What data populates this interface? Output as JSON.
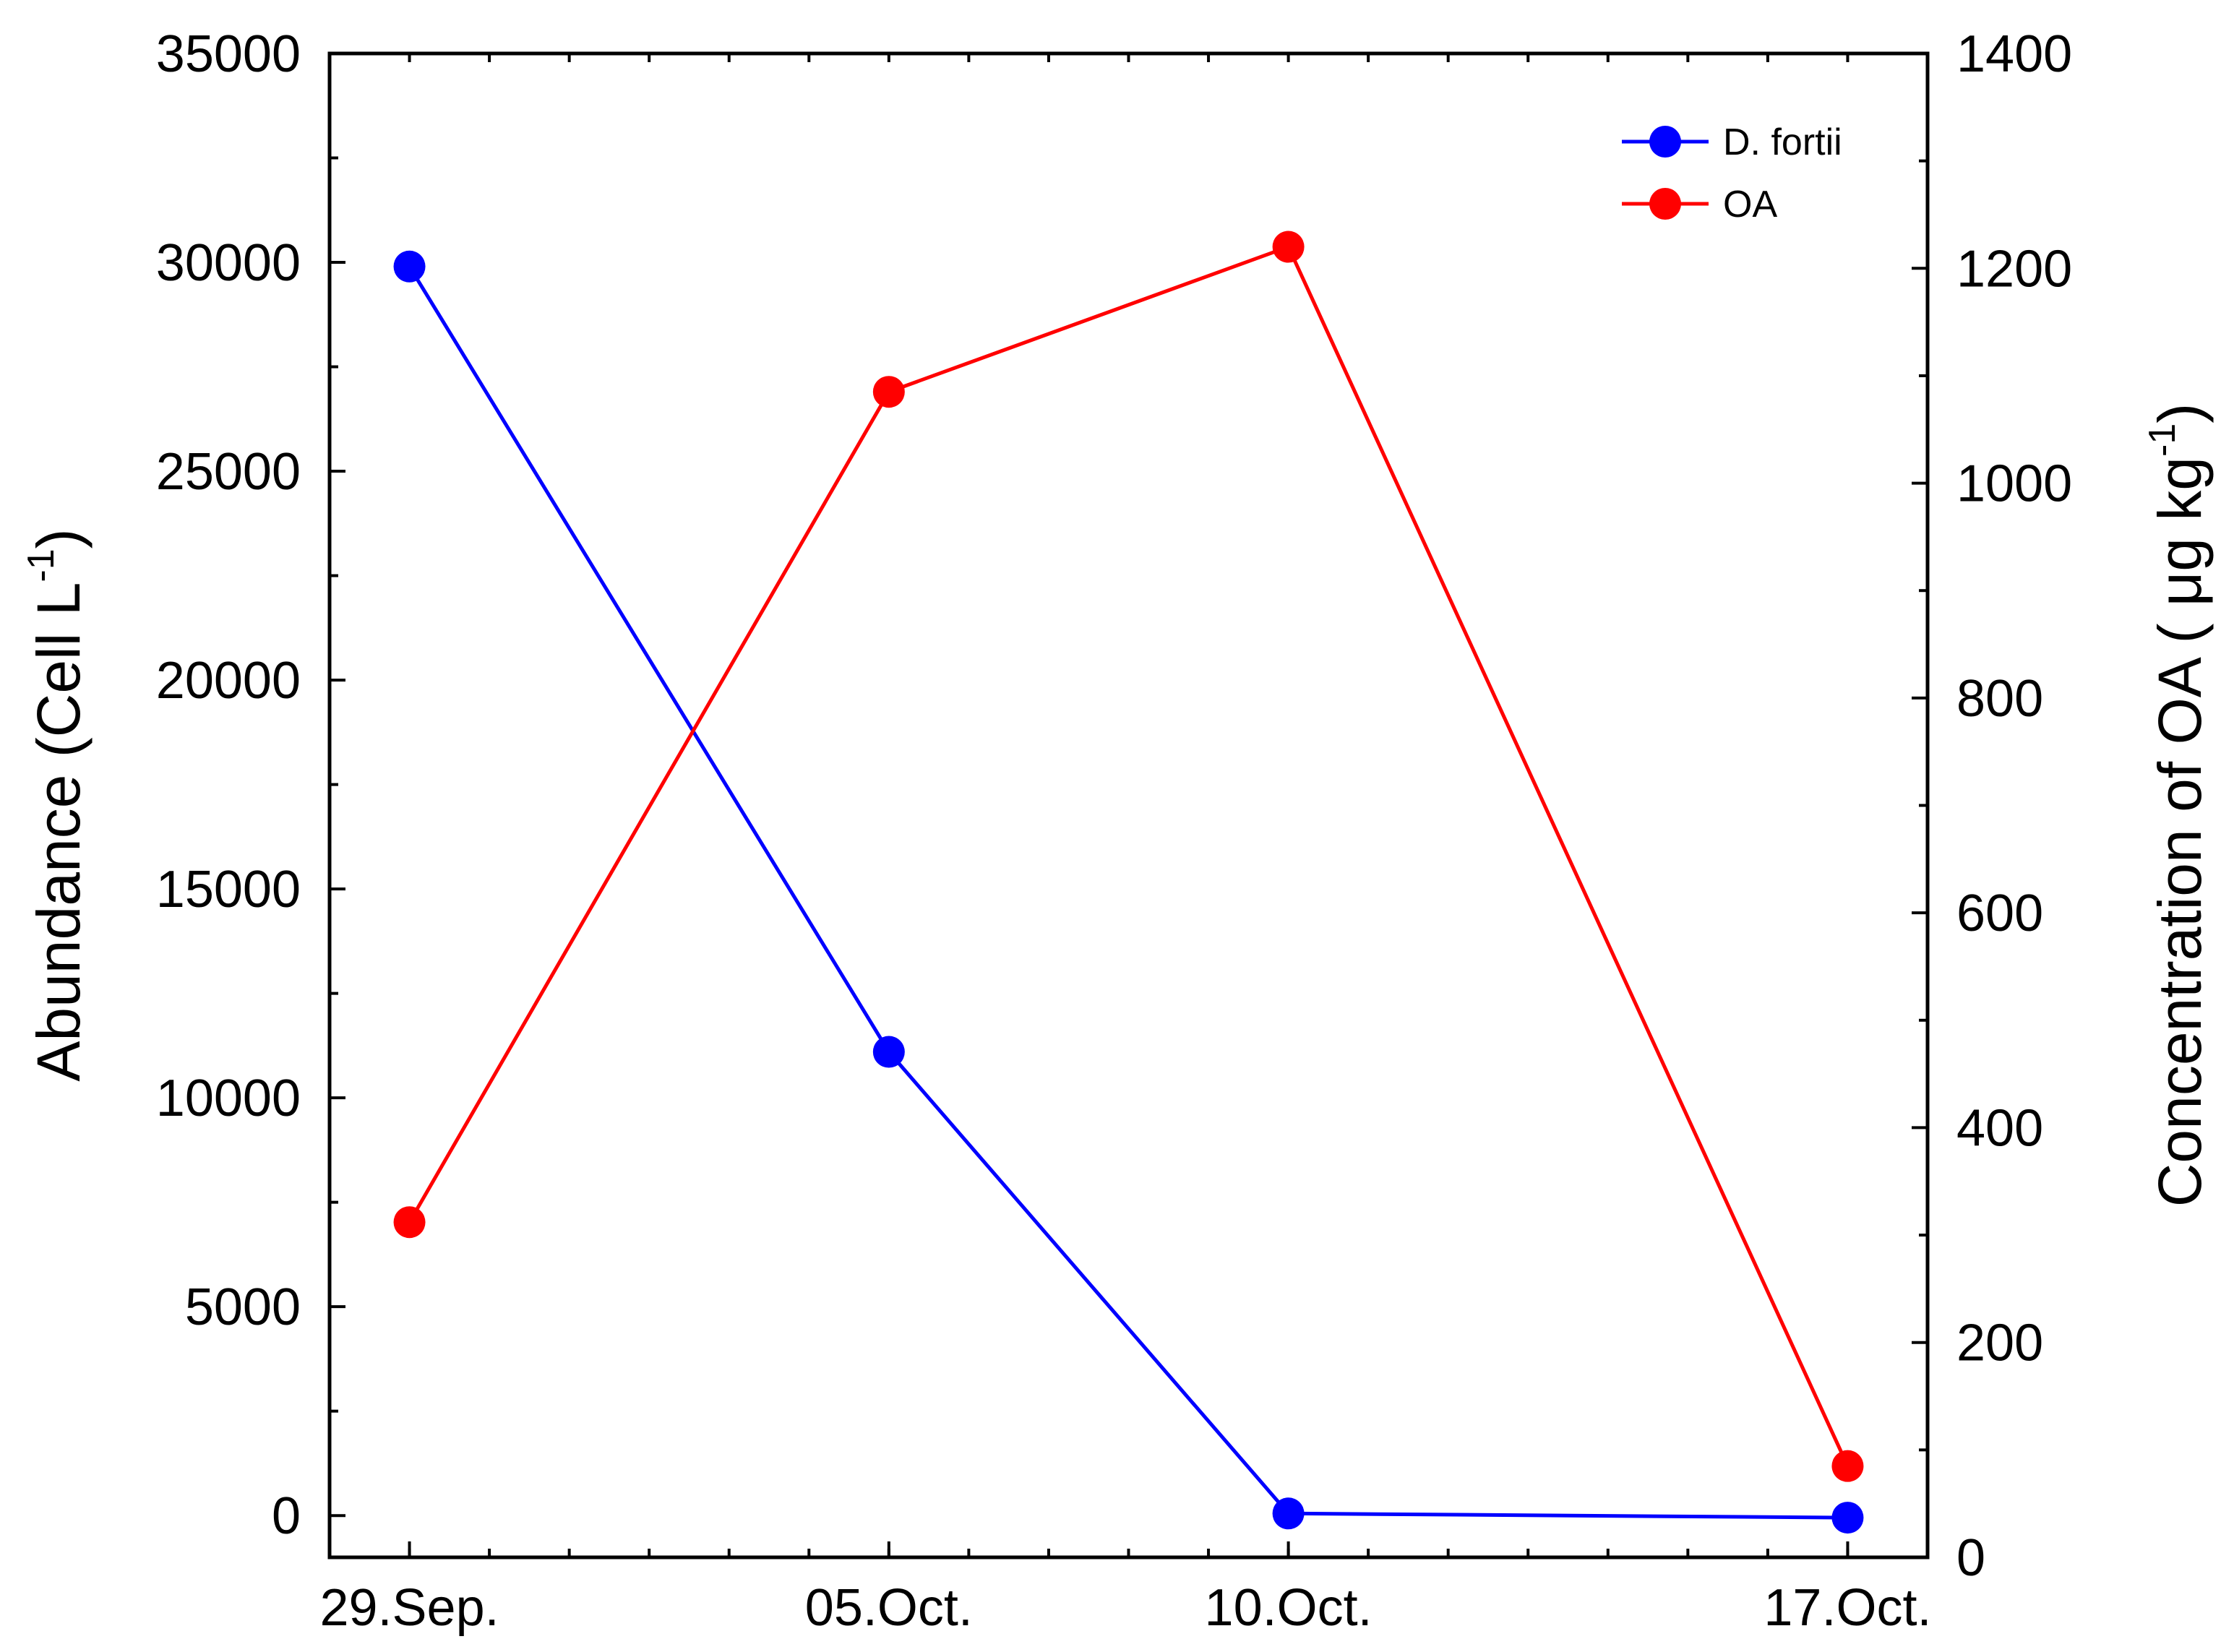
{
  "chart_data": {
    "type": "line",
    "title": "",
    "categories": [
      "29.Sep.",
      "05.Oct.",
      "10.Oct.",
      "17.Oct."
    ],
    "left_axis": {
      "label": "Abundance (Cell L",
      "label_superscript": "-1",
      "label_suffix": ")",
      "ylim": [
        -1000,
        35000
      ],
      "ticks": [
        0,
        5000,
        10000,
        15000,
        20000,
        25000,
        30000,
        35000
      ],
      "tick_labels": [
        "0",
        "5000",
        "10000",
        "15000",
        "20000",
        "25000",
        "30000",
        "35000"
      ]
    },
    "right_axis": {
      "label": "Concentration of OA ( μg kg",
      "label_superscript": "-1",
      "label_suffix": ")",
      "ylim": [
        0,
        1400
      ],
      "ticks": [
        0,
        200,
        400,
        600,
        800,
        1000,
        1200,
        1400
      ],
      "tick_labels": [
        "0",
        "200",
        "400",
        "600",
        "800",
        "1000",
        "1200",
        "1400"
      ]
    },
    "x_positions_days": [
      0,
      6,
      11,
      18
    ],
    "x_range_days": [
      -1,
      19
    ],
    "series": [
      {
        "name": "D. fortii",
        "axis": "left",
        "color": "#0000ff",
        "values": [
          29900,
          11100,
          50,
          -50
        ]
      },
      {
        "name": "OA",
        "axis": "right",
        "color": "#ff0000",
        "values": [
          312,
          1085,
          1220,
          85
        ]
      }
    ],
    "legend": {
      "position": "top-right",
      "entries": [
        "D. fortii",
        "OA"
      ]
    },
    "grid": false
  }
}
